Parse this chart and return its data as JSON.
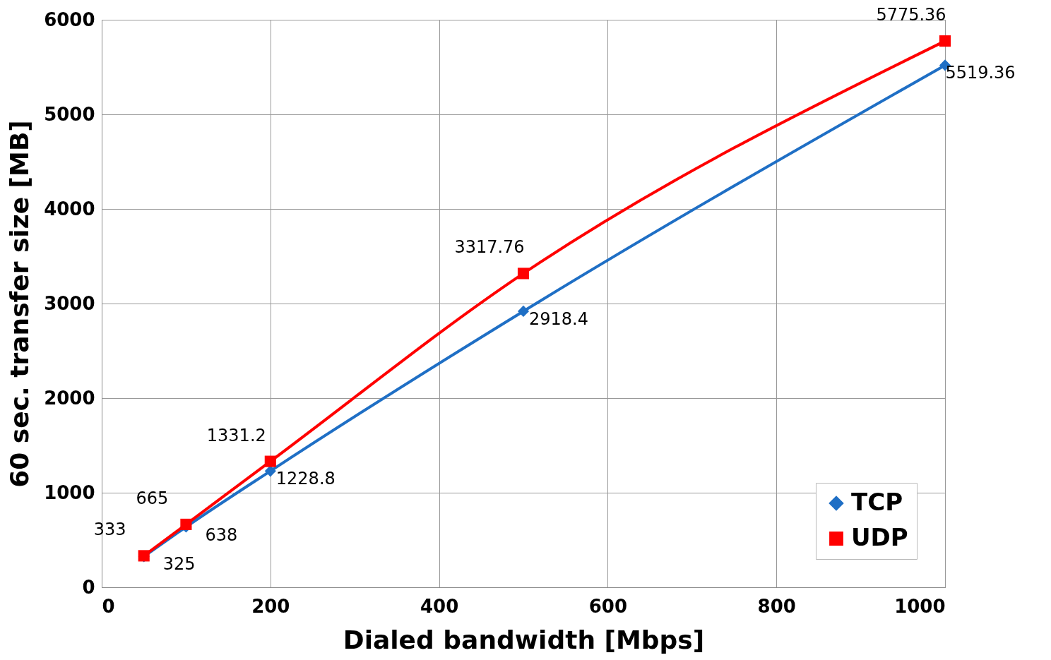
{
  "chart_data": {
    "type": "line",
    "xlabel": "Dialed bandwidth [Mbps]",
    "ylabel": "60 sec. transfer size [MB]",
    "x": [
      50,
      100,
      200,
      500,
      1000
    ],
    "series": [
      {
        "name": "TCP",
        "color": "#1f6fc5",
        "marker": "diamond",
        "values": [
          325,
          638,
          1228.8,
          2918.4,
          5519.36
        ]
      },
      {
        "name": "UDP",
        "color": "#ff0000",
        "marker": "square",
        "values": [
          333,
          665,
          1331.2,
          3317.76,
          5775.36
        ]
      }
    ],
    "xlim": [
      0,
      1000
    ],
    "xticks": [
      0,
      200,
      400,
      600,
      800,
      1000
    ],
    "ylim": [
      0,
      6000
    ],
    "yticks": [
      0,
      1000,
      2000,
      3000,
      4000,
      5000,
      6000
    ],
    "grid": true,
    "legend": "bottom right",
    "data_labels": true,
    "line_style": "solid"
  }
}
